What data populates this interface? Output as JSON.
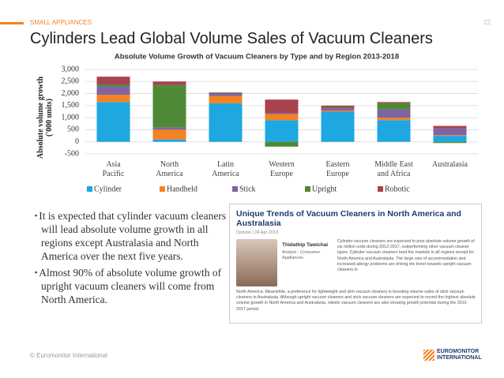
{
  "header": {
    "section": "SMALL APPLIANCES",
    "page_number": "22",
    "title": "Cylinders Lead Global Volume Sales of Vacuum Cleaners"
  },
  "chart_data": {
    "type": "stacked_bar",
    "title": "Absolute Volume Growth of Vacuum Cleaners by Type and by Region 2013-2018",
    "y_label": "Absolute volume growth\n('000 units)",
    "categories": [
      "Asia\nPacific",
      "North\nAmerica",
      "Latin\nAmerica",
      "Western\nEurope",
      "Eastern\nEurope",
      "Middle East\nand Africa",
      "Australasia"
    ],
    "series": [
      {
        "name": "Cylinder",
        "color": "#1ea7e1",
        "values": [
          1650,
          100,
          1600,
          900,
          1250,
          900,
          250
        ]
      },
      {
        "name": "Handheld",
        "color": "#f58220",
        "values": [
          300,
          400,
          300,
          250,
          50,
          100,
          30
        ]
      },
      {
        "name": "Stick",
        "color": "#8064a2",
        "values": [
          350,
          100,
          120,
          50,
          100,
          350,
          280
        ]
      },
      {
        "name": "Upright",
        "color": "#4e8a35",
        "values": [
          80,
          1750,
          20,
          -200,
          30,
          250,
          -50
        ]
      },
      {
        "name": "Robotic",
        "color": "#a8424f",
        "values": [
          320,
          150,
          10,
          550,
          70,
          50,
          100
        ]
      }
    ],
    "ylim": [
      -500,
      3000
    ],
    "yticks": [
      -500,
      0,
      500,
      {
        "value": 1000,
        "label": "1,000"
      },
      {
        "value": 1500,
        "label": "1,500"
      },
      {
        "value": 2000,
        "label": "2,000"
      },
      {
        "value": 2500,
        "label": "2,500"
      },
      {
        "value": 3000,
        "label": "3,000"
      }
    ],
    "grid": true,
    "legend": "bottom"
  },
  "bullets": [
    "It is expected that cylinder vacuum cleaners will lead absolute volume growth in all regions except Australasia and North America over the next five years.",
    "Almost 90% of absolute volume growth of upright vacuum cleaners will come from North America."
  ],
  "article": {
    "title": "Unique Trends of Vacuum Cleaners in North America and Australasia",
    "meta": "Opinion | 24 Apr 2013",
    "author": "Thidathip Tawichai",
    "role": "Analyst - Consumer Appliances",
    "body": [
      "Cylinder vacuum cleaners are expected to post absolute volume growth of six million units during 2012-2017, outperforming other vacuum cleaner types. Cylinder vacuum cleaners lead the markets in all regions except for North America and Australasia. The large size of accommodation and increased allergy problems are driving the trend towards upright vacuum cleaners in",
      "North America. Meanwhile, a preference for lightweight and slim vacuum cleaners is boosting volume sales of stick vacuum cleaners in Australasia. Although upright vacuum cleaners and stick vacuum cleaners are expected to record the highest absolute volume growth in North America and Australasia, robotic vacuum cleaners are also showing growth potential during the 2012-2017 period."
    ]
  },
  "footer": {
    "copyright": "© Euromonitor International",
    "logo": "EUROMONITOR\nINTERNATIONAL"
  }
}
